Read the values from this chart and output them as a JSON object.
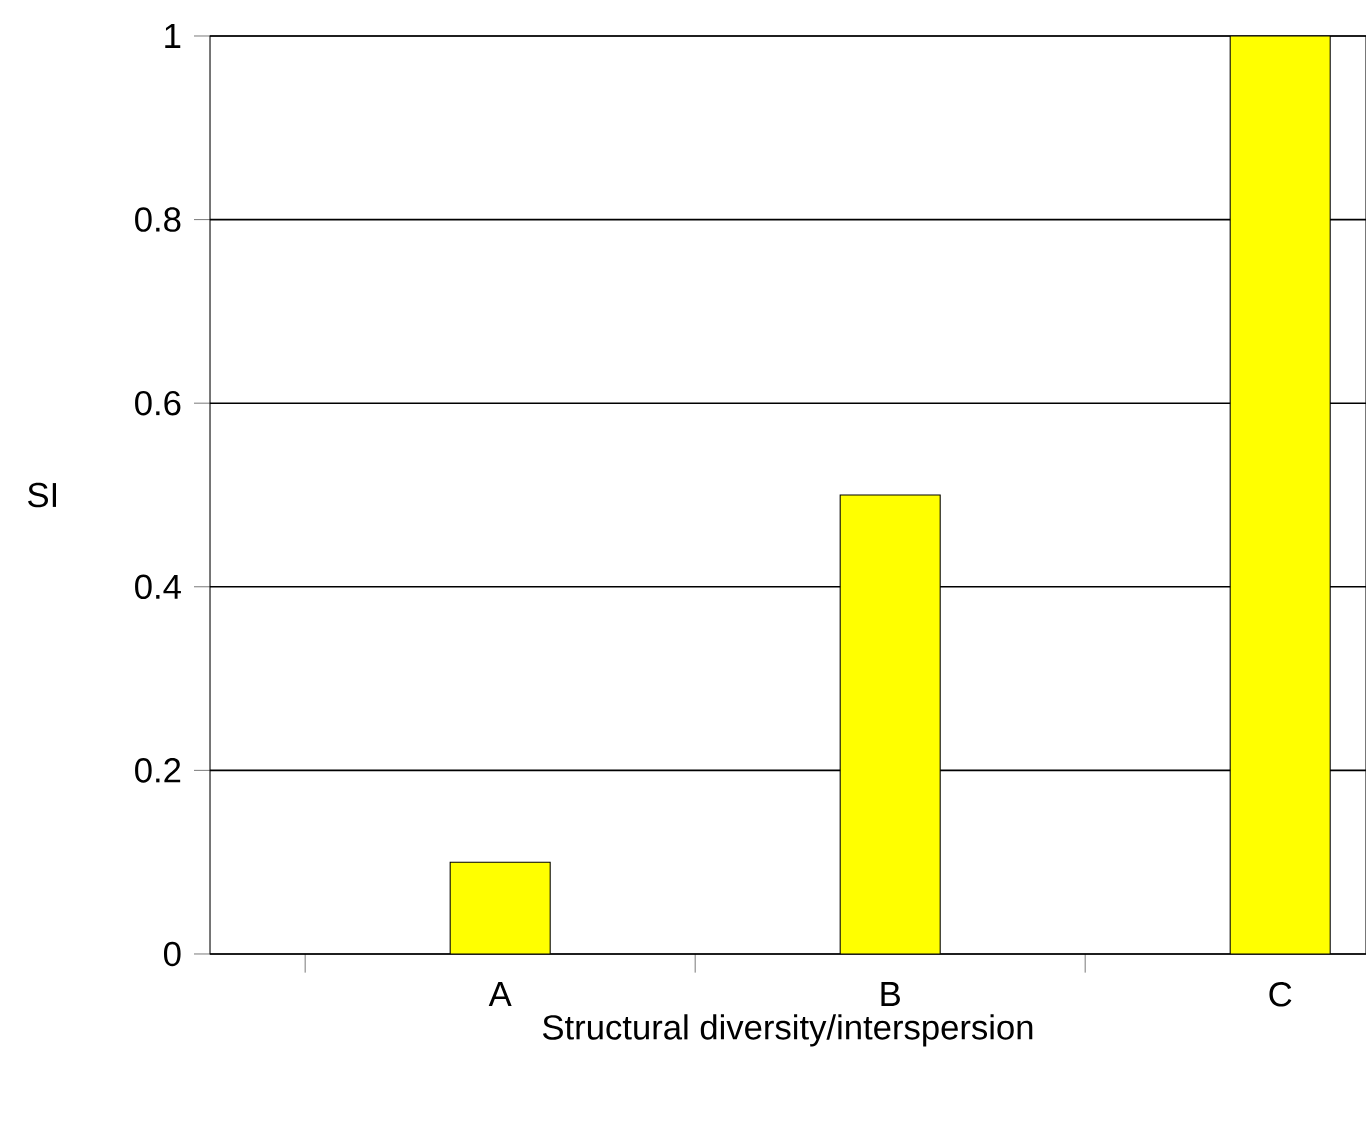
{
  "chart_data": {
    "type": "bar",
    "xlabel": "Structural diversity/interspersion",
    "ylabel": "SI",
    "categories": [
      "A",
      "B",
      "C"
    ],
    "values": [
      0.1,
      0.5,
      1.0
    ],
    "color": "#ffff00",
    "ylim": [
      0,
      1
    ],
    "yticks": [
      0,
      0.2,
      0.4,
      0.6,
      0.8,
      1
    ],
    "grid": "y"
  }
}
